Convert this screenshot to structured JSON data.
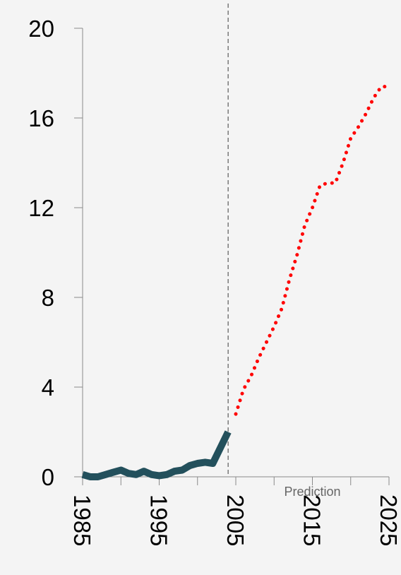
{
  "chart_data": {
    "type": "line",
    "title": "",
    "xlabel": "",
    "ylabel": "",
    "xlim": [
      1985,
      2025
    ],
    "ylim": [
      0,
      20
    ],
    "x_ticks": [
      "1985",
      "1995",
      "2005",
      "2015",
      "2025"
    ],
    "y_ticks": [
      "0",
      "4",
      "8",
      "12",
      "16",
      "20"
    ],
    "grid": false,
    "legend": "none",
    "annotations": [
      {
        "text": "Prediction",
        "x": 2015
      }
    ],
    "reference_lines": [
      {
        "orientation": "vertical",
        "x": 2004,
        "style": "dashed",
        "color": "#666666"
      }
    ],
    "series": [
      {
        "style": "solid",
        "color": "#23505c",
        "x": [
          1985,
          1986,
          1987,
          1988,
          1989,
          1990,
          1991,
          1992,
          1993,
          1994,
          1995,
          1996,
          1997,
          1998,
          1999,
          2000,
          2001,
          2002,
          2003,
          2004
        ],
        "y": [
          0.1,
          0.0,
          0.0,
          0.1,
          0.2,
          0.3,
          0.15,
          0.1,
          0.25,
          0.1,
          0.05,
          0.1,
          0.25,
          0.3,
          0.5,
          0.6,
          0.65,
          0.6,
          1.3,
          2.0
        ]
      },
      {
        "style": "dotted",
        "color": "#ff0000",
        "x": [
          2005,
          2006,
          2007,
          2008,
          2009,
          2010,
          2011,
          2012,
          2013,
          2014,
          2015,
          2016,
          2017,
          2018,
          2019,
          2020,
          2021,
          2022,
          2023,
          2024,
          2025
        ],
        "y": [
          2.8,
          3.9,
          4.5,
          5.3,
          6.0,
          6.7,
          7.5,
          8.8,
          9.9,
          11.2,
          12.0,
          13.0,
          13.1,
          13.1,
          14.0,
          15.1,
          15.6,
          16.2,
          16.9,
          17.4,
          17.4
        ]
      }
    ]
  }
}
